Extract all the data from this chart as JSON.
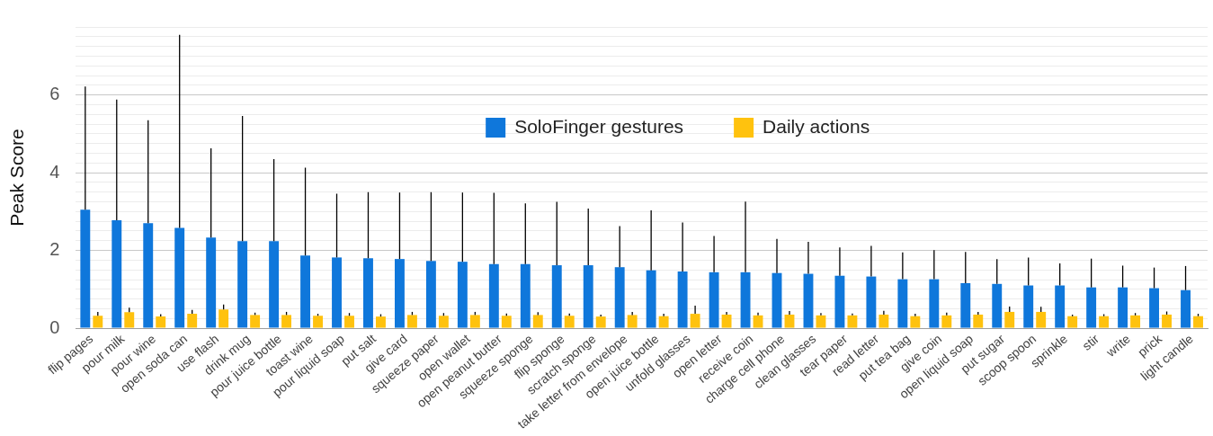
{
  "chart_data": {
    "type": "bar",
    "ylabel": "Peak Score",
    "legend": "top",
    "grid": "y",
    "categories": [
      "flip pages",
      "pour milk",
      "pour wine",
      "open soda can",
      "use flash",
      "drink mug",
      "pour juice bottle",
      "toast wine",
      "pour liquid soap",
      "put salt",
      "give card",
      "squeeze paper",
      "open wallet",
      "open peanut butter",
      "squeeze sponge",
      "flip sponge",
      "scratch sponge",
      "take letter from envelope",
      "open juice bottle",
      "unfold glasses",
      "open letter",
      "receive coin",
      "charge cell phone",
      "clean glasses",
      "tear paper",
      "read letter",
      "put tea bag",
      "give coin",
      "open liquid soap",
      "put sugar",
      "scoop spoon",
      "sprinkle",
      "stir",
      "write",
      "prick",
      "light candle"
    ],
    "ylim": [
      0,
      7.75
    ],
    "yticks": [
      0,
      {
        "value": 0.25,
        "label": null
      },
      {
        "value": 0.5,
        "label": null
      },
      {
        "value": 0.75,
        "label": null
      },
      {
        "value": 1,
        "label": null
      },
      {
        "value": 1.25,
        "label": null
      },
      {
        "value": 1.5,
        "label": null
      },
      {
        "value": 1.75,
        "label": null
      },
      2,
      {
        "value": 2.25,
        "label": null
      },
      {
        "value": 2.5,
        "label": null
      },
      {
        "value": 2.75,
        "label": null
      },
      {
        "value": 3,
        "label": null
      },
      {
        "value": 3.25,
        "label": null
      },
      {
        "value": 3.5,
        "label": null
      },
      {
        "value": 3.75,
        "label": null
      },
      4,
      {
        "value": 4.25,
        "label": null
      },
      {
        "value": 4.5,
        "label": null
      },
      {
        "value": 4.75,
        "label": null
      },
      {
        "value": 5,
        "label": null
      },
      {
        "value": 5.25,
        "label": null
      },
      {
        "value": 5.5,
        "label": null
      },
      {
        "value": 5.75,
        "label": null
      },
      6,
      {
        "value": 6.25,
        "label": null
      },
      {
        "value": 6.5,
        "label": null
      },
      {
        "value": 6.75,
        "label": null
      },
      {
        "value": 7,
        "label": null
      },
      {
        "value": 7.25,
        "label": null
      },
      {
        "value": 7.5,
        "label": null
      },
      {
        "value": 7.75,
        "label": null
      }
    ],
    "series": [
      {
        "name": "SoloFinger gestures",
        "color": "#0f77db",
        "values": [
          3.05,
          2.78,
          2.7,
          2.58,
          2.33,
          2.24,
          2.24,
          1.87,
          1.82,
          1.8,
          1.78,
          1.73,
          1.71,
          1.65,
          1.65,
          1.62,
          1.62,
          1.57,
          1.49,
          1.46,
          1.44,
          1.44,
          1.42,
          1.4,
          1.35,
          1.33,
          1.26,
          1.26,
          1.16,
          1.14,
          1.1,
          1.1,
          1.05,
          1.05,
          1.03,
          0.98
        ],
        "errors": [
          [
            3.05,
            6.22
          ],
          [
            2.78,
            5.88
          ],
          [
            2.7,
            5.35
          ],
          [
            2.58,
            7.55
          ],
          [
            2.33,
            4.63
          ],
          [
            2.24,
            5.46
          ],
          [
            2.24,
            4.35
          ],
          [
            1.87,
            4.13
          ],
          [
            1.82,
            3.46
          ],
          [
            1.8,
            3.5
          ],
          [
            1.78,
            3.49
          ],
          [
            1.73,
            3.5
          ],
          [
            1.71,
            3.49
          ],
          [
            1.65,
            3.48
          ],
          [
            1.65,
            3.21
          ],
          [
            1.62,
            3.25
          ],
          [
            1.62,
            3.08
          ],
          [
            1.57,
            2.63
          ],
          [
            1.49,
            3.03
          ],
          [
            1.46,
            2.72
          ],
          [
            1.44,
            2.37
          ],
          [
            1.44,
            3.26
          ],
          [
            1.42,
            2.3
          ],
          [
            1.4,
            2.22
          ],
          [
            1.35,
            2.08
          ],
          [
            1.33,
            2.12
          ],
          [
            1.26,
            1.95
          ],
          [
            1.26,
            2.01
          ],
          [
            1.16,
            1.96
          ],
          [
            1.14,
            1.78
          ],
          [
            1.1,
            1.82
          ],
          [
            1.1,
            1.67
          ],
          [
            1.05,
            1.79
          ],
          [
            1.05,
            1.61
          ],
          [
            1.03,
            1.56
          ],
          [
            0.98,
            1.6
          ]
        ]
      },
      {
        "name": "Daily actions",
        "color": "#ffc20e",
        "values": [
          0.32,
          0.41,
          0.3,
          0.37,
          0.48,
          0.34,
          0.34,
          0.32,
          0.32,
          0.3,
          0.34,
          0.32,
          0.34,
          0.32,
          0.34,
          0.32,
          0.3,
          0.34,
          0.31,
          0.37,
          0.35,
          0.33,
          0.35,
          0.33,
          0.33,
          0.35,
          0.31,
          0.33,
          0.35,
          0.42,
          0.42,
          0.31,
          0.31,
          0.33,
          0.35,
          0.31
        ],
        "errors": [
          [
            0.32,
            0.42
          ],
          [
            0.41,
            0.53
          ],
          [
            0.3,
            0.36
          ],
          [
            0.37,
            0.47
          ],
          [
            0.48,
            0.61
          ],
          [
            0.34,
            0.4
          ],
          [
            0.34,
            0.42
          ],
          [
            0.32,
            0.37
          ],
          [
            0.32,
            0.39
          ],
          [
            0.3,
            0.36
          ],
          [
            0.34,
            0.42
          ],
          [
            0.32,
            0.39
          ],
          [
            0.34,
            0.42
          ],
          [
            0.32,
            0.38
          ],
          [
            0.34,
            0.41
          ],
          [
            0.32,
            0.38
          ],
          [
            0.3,
            0.35
          ],
          [
            0.34,
            0.42
          ],
          [
            0.31,
            0.37
          ],
          [
            0.37,
            0.58
          ],
          [
            0.35,
            0.42
          ],
          [
            0.33,
            0.4
          ],
          [
            0.35,
            0.44
          ],
          [
            0.33,
            0.39
          ],
          [
            0.33,
            0.38
          ],
          [
            0.35,
            0.45
          ],
          [
            0.31,
            0.37
          ],
          [
            0.33,
            0.4
          ],
          [
            0.35,
            0.42
          ],
          [
            0.42,
            0.56
          ],
          [
            0.42,
            0.55
          ],
          [
            0.31,
            0.35
          ],
          [
            0.31,
            0.36
          ],
          [
            0.33,
            0.39
          ],
          [
            0.35,
            0.43
          ],
          [
            0.31,
            0.37
          ]
        ]
      }
    ]
  }
}
